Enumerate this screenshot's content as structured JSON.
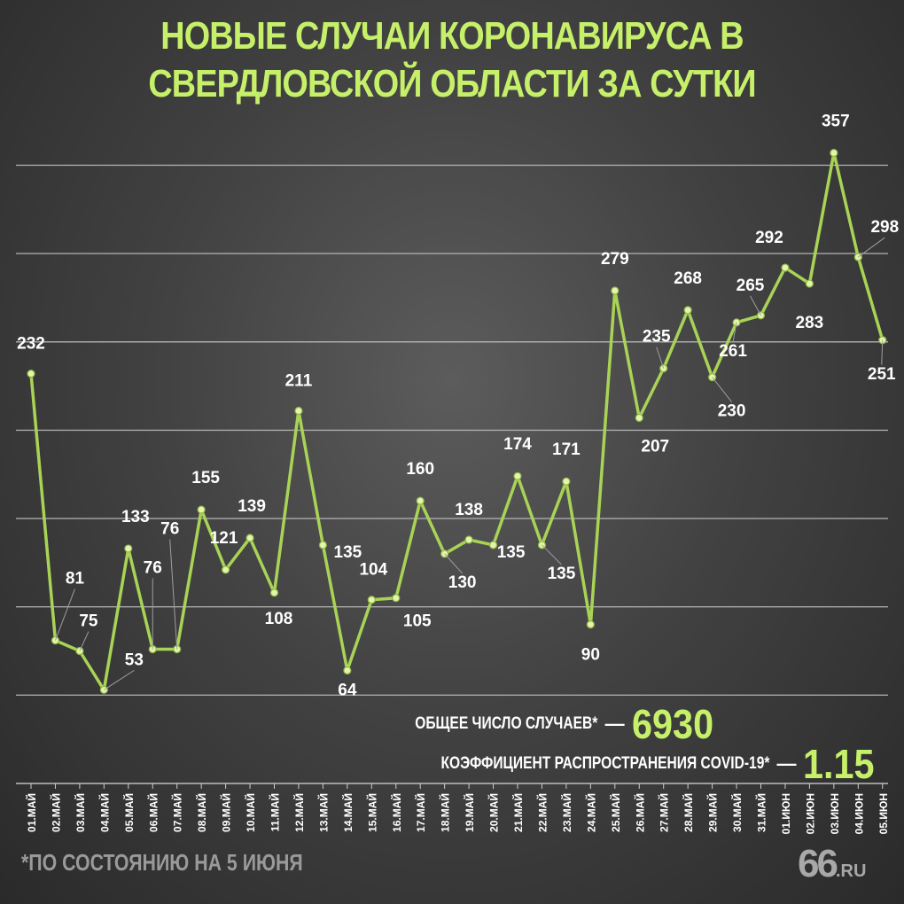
{
  "title": "Новые случаи коронавируса в Свердловской области за сутки",
  "stats": {
    "total_label": "ОБЩЕЕ ЧИСЛО СЛУЧАЕВ*",
    "total_dash": "—",
    "total_value": "6930",
    "coef_label": "КОЭФФИЦИЕНТ РАСПРОСТРАНЕНИЯ COVID-19*",
    "coef_dash": "—",
    "coef_value": "1.15"
  },
  "footnote": "*ПО СОСТОЯНИЮ НА 5 ИЮНЯ",
  "logo": {
    "number": "66",
    "suffix": ".RU"
  },
  "colors": {
    "accent": "#c6f06a",
    "line": "#a9d356",
    "text": "#ffffff",
    "grid": "#bdbdbd"
  },
  "chart_data": {
    "type": "line",
    "title": "Новые случаи коронавируса в Свердловской области за сутки",
    "categories": [
      "01.МАЙ",
      "02.МАЙ",
      "03.МАЙ",
      "04.МАЙ",
      "05.МАЙ",
      "06.МАЙ",
      "07.МАЙ",
      "08.МАЙ",
      "09.МАЙ",
      "10.МАЙ",
      "11.МАЙ",
      "12.МАЙ",
      "13.МАЙ",
      "14.МАЙ",
      "15.МАЙ",
      "16.МАЙ",
      "17.МАЙ",
      "18.МАЙ",
      "19.МАЙ",
      "20.МАЙ",
      "21.МАЙ",
      "22.МАЙ",
      "23.МАЙ",
      "24.МАЙ",
      "25.МАЙ",
      "26.МАЙ",
      "27.МАЙ",
      "28.МАЙ",
      "29.МАЙ",
      "30.МАЙ",
      "31.МАЙ",
      "01.ИЮН",
      "02.ИЮН",
      "03.ИЮН",
      "04.ИЮН",
      "05.ИЮН"
    ],
    "values": [
      232,
      81,
      75,
      53,
      133,
      76,
      76,
      155,
      121,
      139,
      108,
      211,
      135,
      64,
      104,
      105,
      160,
      130,
      138,
      135,
      174,
      135,
      171,
      90,
      279,
      207,
      235,
      268,
      230,
      261,
      265,
      292,
      283,
      357,
      298,
      251
    ],
    "ylim": [
      40,
      360
    ],
    "grid": true,
    "xlabel": "",
    "ylabel": ""
  }
}
